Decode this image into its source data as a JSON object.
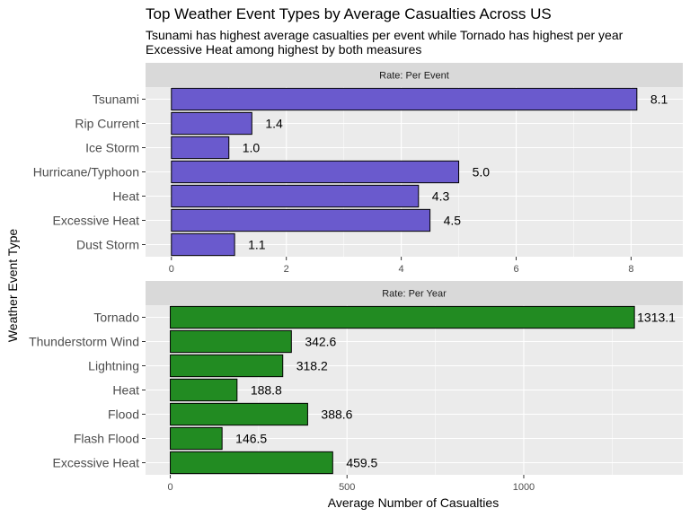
{
  "title": "Top Weather Event Types by Average Casualties Across US",
  "subtitle_lines": [
    "Tsunami has highest average casualties per event while Tornado has highest per year",
    "Excessive Heat among highest by both measures"
  ],
  "xlabel": "Average Number of Casualties",
  "ylabel": "Weather Event Type",
  "chart_data": [
    {
      "type": "bar",
      "orientation": "horizontal",
      "facet_label": "Rate: Per Event",
      "categories": [
        "Tsunami",
        "Rip Current",
        "Ice Storm",
        "Hurricane/Typhoon",
        "Heat",
        "Excessive Heat",
        "Dust Storm"
      ],
      "values": [
        8.1,
        1.4,
        1.0,
        5.0,
        4.3,
        4.5,
        1.1
      ],
      "value_labels": [
        "8.1",
        "1.4",
        "1.0",
        "5.0",
        "4.3",
        "4.5",
        "1.1"
      ],
      "xlim": [
        -0.45,
        8.9
      ],
      "xticks": [
        0,
        2,
        4,
        6,
        8
      ],
      "xtick_labels": [
        "0",
        "2",
        "4",
        "6",
        "8"
      ],
      "color": "#6a5acd",
      "grid": true
    },
    {
      "type": "bar",
      "orientation": "horizontal",
      "facet_label": "Rate: Per Year",
      "categories": [
        "Tornado",
        "Thunderstorm Wind",
        "Lightning",
        "Heat",
        "Flood",
        "Flash Flood",
        "Excessive Heat"
      ],
      "values": [
        1313.1,
        342.6,
        318.2,
        188.8,
        388.6,
        146.5,
        459.5
      ],
      "value_labels": [
        "1313.1",
        "342.6",
        "318.2",
        "188.8",
        "388.6",
        "146.5",
        "459.5"
      ],
      "xlim": [
        -70,
        1450
      ],
      "xticks": [
        0,
        500,
        1000
      ],
      "xtick_labels": [
        "0",
        "500",
        "1000"
      ],
      "color": "#228b22",
      "grid": true
    }
  ]
}
